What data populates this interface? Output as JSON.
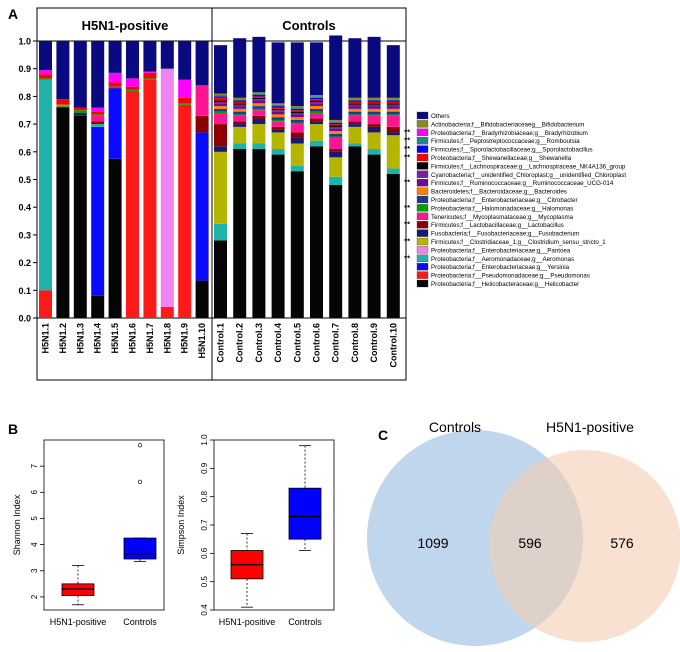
{
  "panels": {
    "a": "A",
    "b": "B",
    "c": "C"
  },
  "chart_data": [
    {
      "type": "bar",
      "subtype": "stacked-100",
      "group_labels": [
        "H5N1-positive",
        "Controls"
      ],
      "ylim": [
        0,
        1.0
      ],
      "yticks": [
        "0.0",
        "0.1",
        "0.2",
        "0.3",
        "0.4",
        "0.5",
        "0.6",
        "0.7",
        "0.8",
        "0.9",
        "1.0"
      ],
      "yticks_values": [
        0,
        0.1,
        0.2,
        0.3,
        0.4,
        0.5,
        0.6,
        0.7,
        0.8,
        0.9,
        1.0
      ],
      "categories": [
        "H5N1.1",
        "H5N1.2",
        "H5N1.3",
        "H5N1.4",
        "H5N1.5",
        "H5N1.6",
        "H5N1.7",
        "H5N1.8",
        "H5N1.9",
        "H5N1.10",
        "Control.1",
        "Control.2",
        "Control.3",
        "Control.4",
        "Control.5",
        "Control.6",
        "Control.7",
        "Control.8",
        "Control.9",
        "Control.10"
      ],
      "legend": [
        {
          "label": "Others",
          "color": "#0a0a80",
          "marker": ""
        },
        {
          "label": "Actinobacteria;f__Bifidobacteriaceaeg__Bifidobacterium",
          "color": "#8b8b1c",
          "marker": ""
        },
        {
          "label": "Proteobacteria;f__Bradyrhizobiaceae;g__Bradyrhizobium",
          "color": "#ff00ff",
          "marker": "**"
        },
        {
          "label": "Firmicutes;f__Peptostreptococcaceae;g__Romboutsia",
          "color": "#1c8a8a",
          "marker": "**"
        },
        {
          "label": "Firmicutes;f__Sporolactobacillaceae;g__Sporolactobacillus",
          "color": "#0000ff",
          "marker": "**"
        },
        {
          "label": "Proteobacteria;f__Shewanellaceae;g__Shewanella",
          "color": "#ff0000",
          "marker": "**"
        },
        {
          "label": "Firmicutes;f__Lachnospiraceae;g__Lachnospiraceae_NK4A136_group",
          "color": "#000000",
          "marker": ""
        },
        {
          "label": "Cyanobacteria;f__unidentified_Chloroplast;g__unidentified_Chloroplast",
          "color": "#7b1fa2",
          "marker": ""
        },
        {
          "label": "Firmicutes;f__Ruminococcaceae;g__Ruminococcaceae_UCG-014",
          "color": "#6a0d91",
          "marker": "**"
        },
        {
          "label": "Bacteroidetes;f__Bacteroidaceae;g__Bacteroides",
          "color": "#ff8000",
          "marker": ""
        },
        {
          "label": "Proteobacteria;f__Enterobacteriaceae;g__Citrobacter",
          "color": "#1e3a8a",
          "marker": ""
        },
        {
          "label": "Proteobacteria;f__Halomonadaceae;g__Halomonas",
          "color": "#00a000",
          "marker": "**"
        },
        {
          "label": "Tenericutes;f__Mycoplasmataceae;g__Mycoplasma",
          "color": "#ff1493",
          "marker": ""
        },
        {
          "label": "Firmicutes;f__Lactobacillaceae;g__Lactobacillus",
          "color": "#8b0000",
          "marker": "**"
        },
        {
          "label": "Fusobacteria;f__Fusobacteriaceae;g__Fusobacterium",
          "color": "#191970",
          "marker": ""
        },
        {
          "label": "Firmicutes;f__Clostridiaceae_1;g__Clostridium_sensu_stricto_1",
          "color": "#b5b500",
          "marker": "**"
        },
        {
          "label": "Proteobacteria;f__Enterobacteriaceae;g__Pantoea",
          "color": "#ee82ee",
          "marker": ""
        },
        {
          "label": "Proteobacteria;f__Aeromonadaceae;g__Aeromonas",
          "color": "#20b2aa",
          "marker": "**"
        },
        {
          "label": "Proteobacteria;f__Enterobacteriaceae;g__Yersinia",
          "color": "#0a0aff",
          "marker": ""
        },
        {
          "label": "Proteobacteria;f__Pseudomonadaceae;g__Pseudomonas",
          "color": "#ff1a1a",
          "marker": ""
        },
        {
          "label": "Proteobacteria;f__Helicobacteraceae;g__Helicobacter",
          "color": "#050505",
          "marker": ""
        }
      ],
      "series": [
        {
          "name": "Proteobacteria;f__Helicobacteraceae;g__Helicobacter",
          "values": [
            0,
            0.76,
            0.73,
            0.08,
            0.575,
            0,
            0,
            0,
            0,
            0.135,
            0.28,
            0.61,
            0.61,
            0.59,
            0.53,
            0.62,
            0.48,
            0.62,
            0.59,
            0.52
          ]
        },
        {
          "name": "Proteobacteria;f__Pseudomonadaceae;g__Pseudomonas",
          "values": [
            0.1,
            0,
            0,
            0,
            0,
            0.82,
            0.86,
            0.04,
            0.77,
            0,
            0,
            0,
            0,
            0,
            0,
            0,
            0,
            0,
            0,
            0
          ]
        },
        {
          "name": "Proteobacteria;f__Enterobacteriaceae;g__Yersinia",
          "values": [
            0,
            0,
            0,
            0.61,
            0.255,
            0,
            0,
            0,
            0,
            0.535,
            0,
            0,
            0,
            0,
            0,
            0,
            0,
            0,
            0,
            0
          ]
        },
        {
          "name": "Proteobacteria;f__Aeromonadaceae;g__Aeromonas",
          "values": [
            0.76,
            0,
            0,
            0.01,
            0,
            0,
            0,
            0,
            0,
            0,
            0.06,
            0.02,
            0.02,
            0.02,
            0.02,
            0.02,
            0.03,
            0.01,
            0.02,
            0.02
          ]
        },
        {
          "name": "Proteobacteria;f__Enterobacteriaceae;g__Pantoea",
          "values": [
            0,
            0,
            0,
            0,
            0,
            0,
            0,
            0.86,
            0,
            0,
            0,
            0,
            0,
            0,
            0,
            0,
            0,
            0,
            0,
            0
          ]
        },
        {
          "name": "Firmicutes;f__Clostridiaceae_1;g__Clostridium_sensu_stricto_1",
          "values": [
            0,
            0,
            0,
            0,
            0,
            0,
            0,
            0,
            0,
            0,
            0.26,
            0.06,
            0.07,
            0.06,
            0.08,
            0.06,
            0.07,
            0.06,
            0.06,
            0.12
          ]
        },
        {
          "name": "Fusobacteria;f__Fusobacteriaceae;g__Fusobacterium",
          "values": [
            0,
            0,
            0.01,
            0,
            0,
            0,
            0,
            0,
            0,
            0,
            0.02,
            0.01,
            0.02,
            0.01,
            0.02,
            0.01,
            0.02,
            0.01,
            0.02,
            0.01
          ]
        },
        {
          "name": "Firmicutes;f__Lactobacillaceae;g__Lactobacillus",
          "values": [
            0,
            0,
            0,
            0.01,
            0,
            0,
            0,
            0,
            0,
            0.06,
            0.08,
            0.01,
            0.01,
            0.01,
            0.02,
            0.01,
            0.01,
            0.01,
            0.01,
            0.02
          ]
        },
        {
          "name": "Tenericutes;f__Mycoplasmataceae;g__Mycoplasma",
          "values": [
            0,
            0,
            0,
            0.02,
            0,
            0,
            0,
            0,
            0,
            0.11,
            0.04,
            0.02,
            0.02,
            0.02,
            0.03,
            0.02,
            0.04,
            0.02,
            0.03,
            0.04
          ]
        },
        {
          "name": "Proteobacteria;f__Halomonadaceae;g__Halomonas",
          "values": [
            0.005,
            0.005,
            0.01,
            0.005,
            0.005,
            0.005,
            0.005,
            0,
            0.005,
            0,
            0.005,
            0.005,
            0.005,
            0.005,
            0.005,
            0.005,
            0.005,
            0.005,
            0.005,
            0.005
          ]
        },
        {
          "name": "Proteobacteria;f__Enterobacteriaceae;g__Citrobacter",
          "values": [
            0,
            0,
            0,
            0,
            0,
            0,
            0,
            0,
            0,
            0,
            0.01,
            0.01,
            0.01,
            0.01,
            0.01,
            0.01,
            0.01,
            0.01,
            0.01,
            0.01
          ]
        },
        {
          "name": "Bacteroidetes;f__Bacteroidaceae;g__Bacteroides",
          "values": [
            0,
            0.005,
            0,
            0,
            0,
            0,
            0,
            0,
            0,
            0,
            0.01,
            0.01,
            0.01,
            0.01,
            0.01,
            0.01,
            0.01,
            0.01,
            0.01,
            0.01
          ]
        },
        {
          "name": "Firmicutes;f__Ruminococcaceae;g__Ruminococcaceae_UCG-014",
          "values": [
            0,
            0,
            0,
            0,
            0,
            0,
            0,
            0,
            0,
            0,
            0.01,
            0.01,
            0.01,
            0.01,
            0.01,
            0.01,
            0.01,
            0.01,
            0.01,
            0.01
          ]
        },
        {
          "name": "Cyanobacteria;f__unidentified_Chloroplast;g__unidentified_Chloroplast",
          "values": [
            0,
            0,
            0,
            0,
            0,
            0,
            0,
            0,
            0,
            0,
            0.005,
            0.005,
            0.005,
            0.005,
            0.005,
            0.005,
            0.005,
            0.005,
            0.005,
            0.005
          ]
        },
        {
          "name": "Firmicutes;f__Lachnospiraceae;g__Lachnospiraceae_NK4A136_group",
          "values": [
            0,
            0,
            0,
            0,
            0,
            0,
            0,
            0,
            0,
            0,
            0.005,
            0.005,
            0.005,
            0.005,
            0.005,
            0.005,
            0.005,
            0.005,
            0.005,
            0.005
          ]
        },
        {
          "name": "Proteobacteria;f__Shewanellaceae;g__Shewanella",
          "values": [
            0.015,
            0.02,
            0.01,
            0.01,
            0.015,
            0.01,
            0.02,
            0,
            0.02,
            0,
            0.01,
            0.005,
            0.005,
            0.005,
            0.005,
            0.005,
            0.005,
            0.005,
            0.005,
            0.005
          ]
        },
        {
          "name": "Firmicutes;f__Sporolactobacillaceae;g__Sporolactobacillus",
          "values": [
            0,
            0,
            0,
            0,
            0,
            0,
            0,
            0,
            0,
            0,
            0.005,
            0.005,
            0.005,
            0.005,
            0.005,
            0.005,
            0.005,
            0.005,
            0.005,
            0.005
          ]
        },
        {
          "name": "Firmicutes;f__Peptostreptococcaceae;g__Romboutsia",
          "values": [
            0,
            0,
            0,
            0,
            0,
            0,
            0,
            0,
            0,
            0,
            0.005,
            0.005,
            0.005,
            0.005,
            0.005,
            0.005,
            0.005,
            0.005,
            0.005,
            0.005
          ]
        },
        {
          "name": "Proteobacteria;f__Bradyrhizobiaceae;g__Bradyrhizobium",
          "values": [
            0.015,
            0,
            0,
            0.015,
            0.035,
            0.03,
            0.005,
            0,
            0.065,
            0,
            0,
            0,
            0,
            0,
            0,
            0,
            0,
            0,
            0,
            0
          ]
        },
        {
          "name": "Actinobacteria;f__Bifidobacteriaceaeg__Bifidobacterium",
          "values": [
            0,
            0,
            0,
            0,
            0,
            0,
            0,
            0,
            0,
            0,
            0.005,
            0.005,
            0.005,
            0.005,
            0.005,
            0.005,
            0.005,
            0.005,
            0.005,
            0.005
          ]
        },
        {
          "name": "Others",
          "values": [
            0.105,
            0.21,
            0.24,
            0.24,
            0.115,
            0.135,
            0.11,
            0.1,
            0.14,
            0.16,
            0.175,
            0.215,
            0.2,
            0.22,
            0.23,
            0.19,
            0.305,
            0.215,
            0.22,
            0.19
          ]
        }
      ]
    },
    {
      "type": "boxplot",
      "ylabel": "Shannon Index",
      "categories": [
        "H5N1-positive",
        "Controls"
      ],
      "ylim": [
        1.5,
        8
      ],
      "yticks": [
        2,
        3,
        4,
        5,
        6,
        7
      ],
      "yticklabels": [
        "2",
        "3",
        "4",
        "5",
        "6",
        "7"
      ],
      "boxes": [
        {
          "name": "H5N1-positive",
          "color": "#ff0000",
          "whisker_low": 1.7,
          "q1": 2.05,
          "median": 2.3,
          "q3": 2.5,
          "whisker_high": 3.2,
          "outliers": []
        },
        {
          "name": "Controls",
          "color": "#0000ff",
          "whisker_low": 3.35,
          "q1": 3.45,
          "median": 3.65,
          "q3": 4.25,
          "whisker_high": 4.25,
          "outliers": [
            6.4,
            7.8
          ]
        }
      ]
    },
    {
      "type": "boxplot",
      "ylabel": "Simpson Index",
      "categories": [
        "H5N1-positive",
        "Controls"
      ],
      "ylim": [
        0.4,
        1.0
      ],
      "yticks": [
        0.4,
        0.5,
        0.6,
        0.7,
        0.8,
        0.9,
        1.0
      ],
      "yticklabels": [
        "0.4",
        "0.5",
        "0.6",
        "0.7",
        "0.8",
        "0.9",
        "1.0"
      ],
      "boxes": [
        {
          "name": "H5N1-positive",
          "color": "#ff0000",
          "whisker_low": 0.41,
          "q1": 0.51,
          "median": 0.56,
          "q3": 0.61,
          "whisker_high": 0.67,
          "outliers": []
        },
        {
          "name": "Controls",
          "color": "#0000ff",
          "whisker_low": 0.61,
          "q1": 0.65,
          "median": 0.73,
          "q3": 0.83,
          "whisker_high": 0.98,
          "outliers": []
        }
      ]
    },
    {
      "type": "venn",
      "sets": [
        {
          "name": "Controls",
          "color": "#a9c8e6"
        },
        {
          "name": "H5N1-positive",
          "color": "#f3cdb3"
        }
      ],
      "values": {
        "controls_only": "1099",
        "intersection": "596",
        "h5n1_only": "576"
      }
    }
  ]
}
